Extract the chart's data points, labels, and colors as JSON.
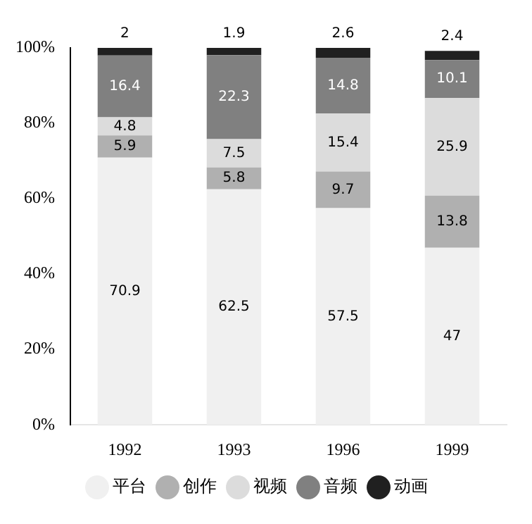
{
  "chart_data": {
    "type": "bar",
    "stacked": true,
    "categories": [
      "1992",
      "1993",
      "1996",
      "1999"
    ],
    "series": [
      {
        "name": "平台",
        "color": "#f0f0f0",
        "values": [
          70.9,
          62.5,
          57.5,
          47
        ]
      },
      {
        "name": "创作",
        "color": "#b0b0b0",
        "values": [
          5.9,
          5.8,
          9.7,
          13.8
        ]
      },
      {
        "name": "视频",
        "color": "#dcdcdc",
        "values": [
          4.8,
          7.5,
          15.4,
          25.9
        ]
      },
      {
        "name": "音频",
        "color": "#808080",
        "values": [
          16.4,
          22.3,
          14.8,
          10.1
        ]
      },
      {
        "name": "动画",
        "color": "#202020",
        "values": [
          2,
          1.9,
          2.6,
          2.4
        ]
      }
    ],
    "ylim": [
      0,
      100
    ],
    "yticks": [
      {
        "value": 0,
        "label": "0%"
      },
      {
        "value": 20,
        "label": "20%"
      },
      {
        "value": 40,
        "label": "40%"
      },
      {
        "value": 60,
        "label": "60%"
      },
      {
        "value": 80,
        "label": "80%"
      },
      {
        "value": 100,
        "label": "100%"
      }
    ],
    "data_labels": true,
    "legend": "bottom",
    "grid": false
  }
}
